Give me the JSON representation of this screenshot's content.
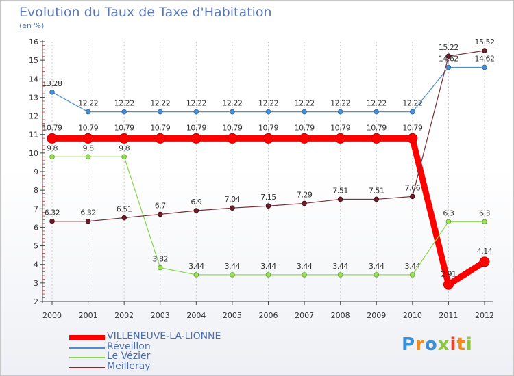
{
  "chart_data": {
    "type": "line",
    "title": "Evolution du Taux de Taxe d'Habitation",
    "ylabel": "(en %)",
    "xlabel": "",
    "ylim": [
      2,
      16
    ],
    "yticks": [
      2,
      3,
      4,
      5,
      6,
      7,
      8,
      9,
      10,
      11,
      12,
      13,
      14,
      15,
      16
    ],
    "categories": [
      "2000",
      "2001",
      "2002",
      "2003",
      "2004",
      "2005",
      "2006",
      "2007",
      "2008",
      "2009",
      "2010",
      "2011",
      "2012"
    ],
    "grid": "vertical dashed",
    "series": [
      {
        "name": "VILLENEUVE-LA-LIONNE",
        "color": "#ff0000",
        "values": [
          10.79,
          10.79,
          10.79,
          10.79,
          10.79,
          10.79,
          10.79,
          10.79,
          10.79,
          10.79,
          10.79,
          2.91,
          4.14
        ],
        "labels": [
          "10.79",
          "10.79",
          "10.79",
          "10.79",
          "10.79",
          "10.79",
          "10.79",
          "10.79",
          "10.79",
          "10.79",
          "10.79",
          "2.91",
          "4.14"
        ]
      },
      {
        "name": "Réveillon",
        "color": "#4a90d0",
        "values": [
          13.28,
          12.22,
          12.22,
          12.22,
          12.22,
          12.22,
          12.22,
          12.22,
          12.22,
          12.22,
          12.22,
          14.62,
          14.62
        ],
        "labels": [
          "13.28",
          "12.22",
          "12.22",
          "12.22",
          "12.22",
          "12.22",
          "12.22",
          "12.22",
          "12.22",
          "12.22",
          "12.22",
          "14.62",
          "14.62"
        ]
      },
      {
        "name": "Le Vézier",
        "color": "#88d44a",
        "values": [
          9.8,
          9.8,
          9.8,
          3.82,
          3.44,
          3.44,
          3.44,
          3.44,
          3.44,
          3.44,
          3.44,
          6.3,
          6.3
        ],
        "labels": [
          "9.8",
          "9.8",
          "9.8",
          "3.82",
          "3.44",
          "3.44",
          "3.44",
          "3.44",
          "3.44",
          "3.44",
          "3.44",
          "6.3",
          "6.3"
        ]
      },
      {
        "name": "Meilleray",
        "color": "#7a2d35",
        "values": [
          6.32,
          6.32,
          6.51,
          6.7,
          6.9,
          7.04,
          7.15,
          7.29,
          7.51,
          7.51,
          7.66,
          15.22,
          15.52
        ],
        "labels": [
          "6.32",
          "6.32",
          "6.51",
          "6.7",
          "6.9",
          "7.04",
          "7.15",
          "7.29",
          "7.51",
          "7.51",
          "7.66",
          "15.22",
          "15.52"
        ]
      }
    ],
    "legend_position": "bottom-left"
  },
  "logo": {
    "text": "Proxiti",
    "letters": [
      "P",
      "r",
      "o",
      "x",
      "i",
      "t",
      "i"
    ],
    "colors": [
      "#3a8fd8",
      "#f08a1c",
      "#3a8fd8",
      "#8cc63f",
      "#e8452c",
      "#f08a1c",
      "#8cc63f"
    ]
  }
}
